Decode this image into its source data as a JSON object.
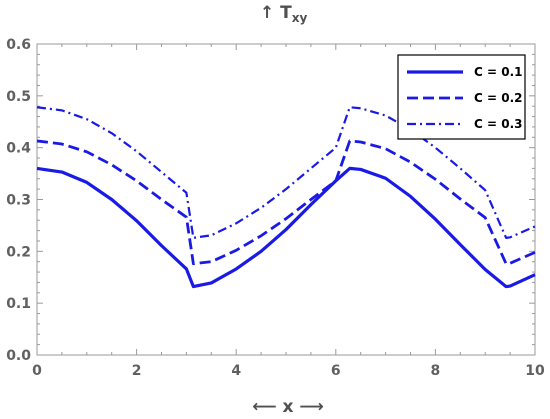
{
  "chart_data": {
    "type": "line",
    "ylabel": "↑ T",
    "ylabel_sub": "xy",
    "xlabel": "⟵ x ⟶",
    "xlim": [
      0,
      10
    ],
    "ylim": [
      0,
      0.6
    ],
    "xticks": [
      0,
      2,
      4,
      6,
      8,
      10
    ],
    "xtick_labels": [
      "0",
      "2",
      "4",
      "6",
      "8",
      "10"
    ],
    "yticks": [
      0.0,
      0.1,
      0.2,
      0.3,
      0.4,
      0.5,
      0.6
    ],
    "ytick_labels": [
      "0.0",
      "0.1",
      "0.2",
      "0.3",
      "0.4",
      "0.5",
      "0.6"
    ],
    "grid": false,
    "legend_position": "top-right",
    "color": "#1a1ae6",
    "x": [
      0,
      0.5,
      1,
      1.5,
      2,
      2.5,
      3,
      3.14,
      3.5,
      4,
      4.5,
      5,
      5.5,
      6,
      6.28,
      6.5,
      7,
      7.5,
      8,
      8.5,
      9,
      9.42,
      9.5,
      10
    ],
    "series": [
      {
        "name": "C = 0.1",
        "dash": "solid",
        "values": [
          0.36,
          0.353,
          0.333,
          0.3,
          0.259,
          0.211,
          0.166,
          0.132,
          0.139,
          0.166,
          0.2,
          0.242,
          0.29,
          0.336,
          0.36,
          0.358,
          0.341,
          0.306,
          0.262,
          0.213,
          0.165,
          0.132,
          0.133,
          0.155
        ]
      },
      {
        "name": "C = 0.2",
        "dash": "dashed",
        "values": [
          0.413,
          0.407,
          0.392,
          0.367,
          0.336,
          0.3,
          0.266,
          0.176,
          0.18,
          0.202,
          0.23,
          0.263,
          0.3,
          0.336,
          0.413,
          0.411,
          0.398,
          0.372,
          0.339,
          0.301,
          0.265,
          0.176,
          0.177,
          0.198
        ]
      },
      {
        "name": "C = 0.3",
        "dash": "dashdot",
        "values": [
          0.478,
          0.472,
          0.455,
          0.428,
          0.393,
          0.353,
          0.313,
          0.226,
          0.231,
          0.254,
          0.284,
          0.32,
          0.36,
          0.4,
          0.478,
          0.476,
          0.462,
          0.435,
          0.4,
          0.36,
          0.318,
          0.226,
          0.227,
          0.248
        ]
      }
    ]
  }
}
